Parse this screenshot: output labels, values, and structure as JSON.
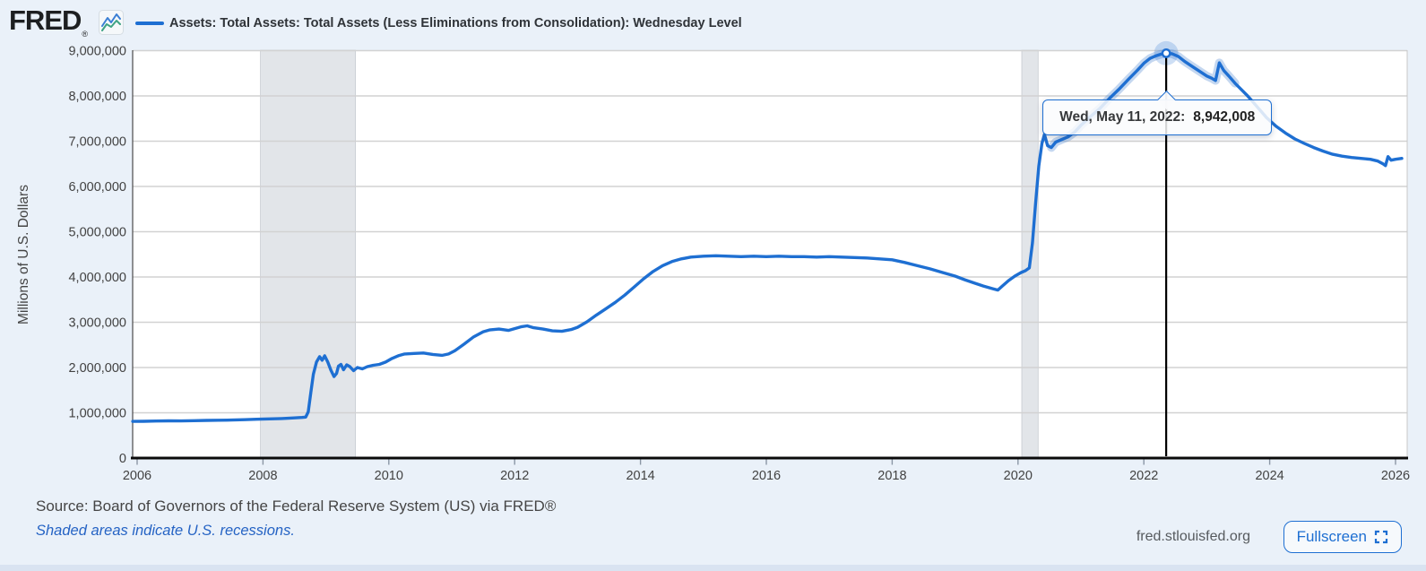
{
  "header": {
    "logo_text": "FRED",
    "series_title": "Assets: Total Assets: Total Assets (Less Eliminations from Consolidation): Wednesday Level"
  },
  "tooltip": {
    "date_label": "Wed, May 11, 2022:",
    "value": "8,942,008"
  },
  "footer": {
    "source": "Source: Board of Governors of the Federal Reserve System (US) via FRED®",
    "recession_note": "Shaded areas indicate U.S. recessions.",
    "site": "fred.stlouisfed.org",
    "fullscreen_label": "Fullscreen"
  },
  "colors": {
    "line": "#1e6fd2",
    "line_hover_halo": "rgba(100,150,215,0.38)",
    "point_halo": "rgba(30,111,210,0.22)",
    "background": "#eaf1f9",
    "plot_background": "#ffffff",
    "gridline": "#d2d2d2",
    "recession_band": "#e2e5e9",
    "recession_band_edge": "#c7cbd1",
    "axis_text": "#424242",
    "axis_line": "#0a0a0a",
    "crosshair": "#000000",
    "tooltip_border": "#1e6fd2"
  },
  "chart_data": {
    "type": "line",
    "title": "Assets: Total Assets: Total Assets (Less Eliminations from Consolidation): Wednesday Level",
    "ylabel": "Millions of U.S. Dollars",
    "xlabel": "",
    "legend_position": "top",
    "grid": "horizontal",
    "ylim": [
      0,
      9000000
    ],
    "xlim": [
      2006,
      2026.2
    ],
    "y_ticks": [
      {
        "value": 0,
        "label": "0"
      },
      {
        "value": 1000000,
        "label": "1,000,000"
      },
      {
        "value": 2000000,
        "label": "2,000,000"
      },
      {
        "value": 3000000,
        "label": "3,000,000"
      },
      {
        "value": 4000000,
        "label": "4,000,000"
      },
      {
        "value": 5000000,
        "label": "5,000,000"
      },
      {
        "value": 6000000,
        "label": "6,000,000"
      },
      {
        "value": 7000000,
        "label": "7,000,000"
      },
      {
        "value": 8000000,
        "label": "8,000,000"
      },
      {
        "value": 9000000,
        "label": "9,000,000"
      }
    ],
    "x_ticks": [
      2006,
      2008,
      2010,
      2012,
      2014,
      2016,
      2018,
      2020,
      2022,
      2024,
      2026
    ],
    "recessions": [
      [
        2007.96,
        2009.47
      ],
      [
        2020.06,
        2020.32
      ]
    ],
    "highlight": {
      "x": 2022.355,
      "value": 8942008,
      "date": "Wed, May 11, 2022",
      "hover_halo_span": [
        2020.5,
        2023.45
      ]
    },
    "series": [
      {
        "name": "Assets: Total Assets: Total Assets (Less Eliminations from Consolidation): Wednesday Level",
        "points": [
          [
            2005.93,
            810000
          ],
          [
            2006.1,
            812000
          ],
          [
            2006.3,
            818000
          ],
          [
            2006.5,
            822000
          ],
          [
            2006.7,
            820000
          ],
          [
            2006.9,
            826000
          ],
          [
            2007.1,
            832000
          ],
          [
            2007.3,
            836000
          ],
          [
            2007.5,
            840000
          ],
          [
            2007.7,
            848000
          ],
          [
            2007.9,
            858000
          ],
          [
            2008.1,
            866000
          ],
          [
            2008.3,
            874000
          ],
          [
            2008.5,
            888000
          ],
          [
            2008.62,
            898000
          ],
          [
            2008.68,
            905000
          ],
          [
            2008.72,
            1020000
          ],
          [
            2008.76,
            1450000
          ],
          [
            2008.8,
            1850000
          ],
          [
            2008.85,
            2120000
          ],
          [
            2008.9,
            2240000
          ],
          [
            2008.94,
            2160000
          ],
          [
            2008.98,
            2260000
          ],
          [
            2009.03,
            2120000
          ],
          [
            2009.08,
            1940000
          ],
          [
            2009.13,
            1800000
          ],
          [
            2009.17,
            1870000
          ],
          [
            2009.2,
            2030000
          ],
          [
            2009.24,
            2070000
          ],
          [
            2009.28,
            1950000
          ],
          [
            2009.33,
            2060000
          ],
          [
            2009.38,
            2020000
          ],
          [
            2009.44,
            1930000
          ],
          [
            2009.5,
            2000000
          ],
          [
            2009.58,
            1970000
          ],
          [
            2009.66,
            2020000
          ],
          [
            2009.75,
            2050000
          ],
          [
            2009.85,
            2070000
          ],
          [
            2009.95,
            2120000
          ],
          [
            2010.05,
            2200000
          ],
          [
            2010.15,
            2260000
          ],
          [
            2010.25,
            2300000
          ],
          [
            2010.4,
            2310000
          ],
          [
            2010.55,
            2320000
          ],
          [
            2010.7,
            2290000
          ],
          [
            2010.85,
            2270000
          ],
          [
            2010.95,
            2300000
          ],
          [
            2011.05,
            2370000
          ],
          [
            2011.2,
            2520000
          ],
          [
            2011.35,
            2680000
          ],
          [
            2011.5,
            2790000
          ],
          [
            2011.6,
            2830000
          ],
          [
            2011.75,
            2850000
          ],
          [
            2011.9,
            2820000
          ],
          [
            2012.0,
            2860000
          ],
          [
            2012.1,
            2900000
          ],
          [
            2012.2,
            2920000
          ],
          [
            2012.3,
            2880000
          ],
          [
            2012.45,
            2850000
          ],
          [
            2012.6,
            2810000
          ],
          [
            2012.75,
            2800000
          ],
          [
            2012.9,
            2840000
          ],
          [
            2013.0,
            2890000
          ],
          [
            2013.15,
            3010000
          ],
          [
            2013.3,
            3160000
          ],
          [
            2013.45,
            3300000
          ],
          [
            2013.6,
            3440000
          ],
          [
            2013.75,
            3600000
          ],
          [
            2013.9,
            3780000
          ],
          [
            2014.05,
            3960000
          ],
          [
            2014.2,
            4120000
          ],
          [
            2014.35,
            4250000
          ],
          [
            2014.5,
            4340000
          ],
          [
            2014.65,
            4400000
          ],
          [
            2014.8,
            4440000
          ],
          [
            2015.0,
            4460000
          ],
          [
            2015.2,
            4470000
          ],
          [
            2015.4,
            4460000
          ],
          [
            2015.6,
            4450000
          ],
          [
            2015.8,
            4460000
          ],
          [
            2016.0,
            4450000
          ],
          [
            2016.2,
            4460000
          ],
          [
            2016.4,
            4450000
          ],
          [
            2016.6,
            4450000
          ],
          [
            2016.8,
            4440000
          ],
          [
            2017.0,
            4450000
          ],
          [
            2017.2,
            4440000
          ],
          [
            2017.4,
            4430000
          ],
          [
            2017.6,
            4420000
          ],
          [
            2017.8,
            4400000
          ],
          [
            2018.0,
            4380000
          ],
          [
            2018.2,
            4320000
          ],
          [
            2018.4,
            4250000
          ],
          [
            2018.6,
            4180000
          ],
          [
            2018.8,
            4100000
          ],
          [
            2019.0,
            4020000
          ],
          [
            2019.15,
            3940000
          ],
          [
            2019.3,
            3870000
          ],
          [
            2019.45,
            3800000
          ],
          [
            2019.6,
            3740000
          ],
          [
            2019.68,
            3710000
          ],
          [
            2019.75,
            3800000
          ],
          [
            2019.85,
            3920000
          ],
          [
            2019.95,
            4020000
          ],
          [
            2020.05,
            4100000
          ],
          [
            2020.12,
            4140000
          ],
          [
            2020.18,
            4200000
          ],
          [
            2020.23,
            4750000
          ],
          [
            2020.28,
            5650000
          ],
          [
            2020.33,
            6450000
          ],
          [
            2020.38,
            6950000
          ],
          [
            2020.42,
            7150000
          ],
          [
            2020.47,
            6900000
          ],
          [
            2020.53,
            6860000
          ],
          [
            2020.6,
            6980000
          ],
          [
            2020.7,
            7040000
          ],
          [
            2020.8,
            7100000
          ],
          [
            2020.9,
            7200000
          ],
          [
            2021.0,
            7350000
          ],
          [
            2021.15,
            7540000
          ],
          [
            2021.3,
            7720000
          ],
          [
            2021.45,
            7940000
          ],
          [
            2021.6,
            8140000
          ],
          [
            2021.75,
            8360000
          ],
          [
            2021.9,
            8570000
          ],
          [
            2022.0,
            8720000
          ],
          [
            2022.1,
            8830000
          ],
          [
            2022.2,
            8890000
          ],
          [
            2022.28,
            8925000
          ],
          [
            2022.355,
            8942008
          ],
          [
            2022.45,
            8930000
          ],
          [
            2022.55,
            8870000
          ],
          [
            2022.65,
            8760000
          ],
          [
            2022.78,
            8640000
          ],
          [
            2022.9,
            8530000
          ],
          [
            2023.0,
            8440000
          ],
          [
            2023.08,
            8390000
          ],
          [
            2023.14,
            8340000
          ],
          [
            2023.2,
            8730000
          ],
          [
            2023.27,
            8560000
          ],
          [
            2023.35,
            8440000
          ],
          [
            2023.45,
            8280000
          ],
          [
            2023.55,
            8140000
          ],
          [
            2023.65,
            8000000
          ],
          [
            2023.8,
            7760000
          ],
          [
            2023.95,
            7520000
          ],
          [
            2024.1,
            7330000
          ],
          [
            2024.25,
            7180000
          ],
          [
            2024.4,
            7050000
          ],
          [
            2024.55,
            6950000
          ],
          [
            2024.7,
            6860000
          ],
          [
            2024.85,
            6780000
          ],
          [
            2025.0,
            6710000
          ],
          [
            2025.15,
            6670000
          ],
          [
            2025.3,
            6640000
          ],
          [
            2025.45,
            6620000
          ],
          [
            2025.6,
            6600000
          ],
          [
            2025.72,
            6560000
          ],
          [
            2025.8,
            6500000
          ],
          [
            2025.84,
            6460000
          ],
          [
            2025.88,
            6660000
          ],
          [
            2025.93,
            6580000
          ],
          [
            2026.0,
            6600000
          ],
          [
            2026.1,
            6620000
          ]
        ]
      }
    ]
  }
}
